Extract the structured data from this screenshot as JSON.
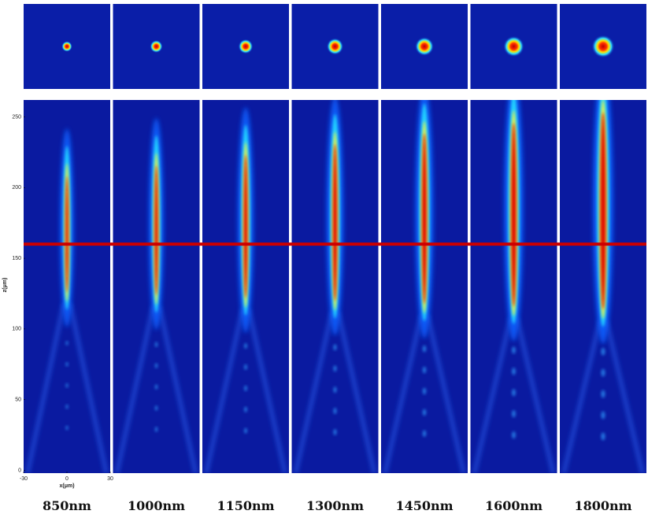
{
  "figure": {
    "type": "beam-profiles",
    "panels": [
      "850nm",
      "1000nm",
      "1150nm",
      "1300nm",
      "1450nm",
      "1600nm",
      "1800nm"
    ],
    "xlabel": "x(μm)",
    "ylabel": "z(μm)",
    "xlim": [
      -30,
      30
    ],
    "ylim": [
      -2,
      262
    ],
    "xticks": [
      -30,
      0,
      30
    ],
    "yticks": [
      0,
      50,
      100,
      150,
      200,
      250
    ],
    "reference_z": 160,
    "reference_color": "#cc0000"
  }
}
